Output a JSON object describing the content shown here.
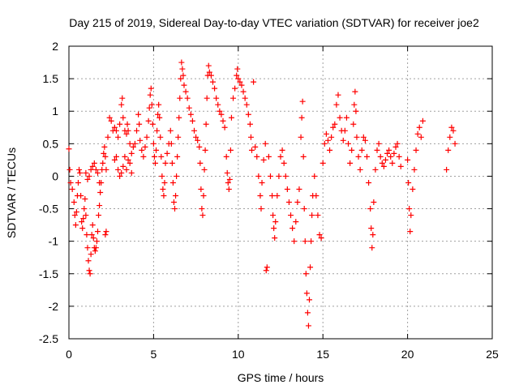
{
  "chart_data": {
    "type": "scatter",
    "title": "Day 215 of 2019, Sidereal Day-to-day VTEC variation (SDTVAR) for receiver joe2",
    "xlabel": "GPS time / hours",
    "ylabel": "SDTVAR / TECUs",
    "xlim": [
      0,
      25
    ],
    "ylim": [
      -2.5,
      2
    ],
    "xticks": [
      "0",
      "5",
      "10",
      "15",
      "20",
      "25"
    ],
    "yticks": [
      "2",
      "1.5",
      "1",
      "0.5",
      "0",
      "-0.5",
      "-1",
      "-1.5",
      "-2",
      "-2.5"
    ],
    "grid": true,
    "marker": "+",
    "marker_color": "#ff0000",
    "series": [
      {
        "name": "SDTVAR",
        "points": [
          [
            0.0,
            0.42
          ],
          [
            0.05,
            0.1
          ],
          [
            0.1,
            -0.1
          ],
          [
            0.2,
            -0.2
          ],
          [
            0.3,
            -0.4
          ],
          [
            0.35,
            -0.6
          ],
          [
            0.4,
            -0.75
          ],
          [
            0.45,
            -0.55
          ],
          [
            0.5,
            -0.3
          ],
          [
            0.55,
            -0.1
          ],
          [
            0.6,
            0.1
          ],
          [
            0.65,
            0.05
          ],
          [
            0.7,
            -0.3
          ],
          [
            0.75,
            -0.7
          ],
          [
            0.8,
            -0.8
          ],
          [
            0.85,
            -0.65
          ],
          [
            0.9,
            -0.5
          ],
          [
            0.95,
            -0.35
          ],
          [
            1.0,
            -0.6
          ],
          [
            1.05,
            -0.9
          ],
          [
            1.1,
            -1.1
          ],
          [
            1.15,
            -1.3
          ],
          [
            1.2,
            -1.45
          ],
          [
            1.25,
            -1.5
          ],
          [
            1.3,
            -1.2
          ],
          [
            1.35,
            -0.9
          ],
          [
            1.4,
            -0.75
          ],
          [
            1.45,
            -0.95
          ],
          [
            1.5,
            -1.1
          ],
          [
            1.55,
            -1.15
          ],
          [
            1.6,
            -1.1
          ],
          [
            1.65,
            -1.0
          ],
          [
            1.7,
            -0.85
          ],
          [
            1.75,
            -0.6
          ],
          [
            1.8,
            -0.45
          ],
          [
            1.85,
            -0.25
          ],
          [
            1.9,
            -0.1
          ],
          [
            1.95,
            0.1
          ],
          [
            2.0,
            0.2
          ],
          [
            2.05,
            0.35
          ],
          [
            2.1,
            0.45
          ],
          [
            2.15,
            0.3
          ],
          [
            2.2,
            0.1
          ],
          [
            2.2,
            -0.85
          ],
          [
            2.15,
            -0.9
          ],
          [
            1.0,
            0.05
          ],
          [
            1.1,
            -0.05
          ],
          [
            1.2,
            0.0
          ],
          [
            1.3,
            0.1
          ],
          [
            1.4,
            0.15
          ],
          [
            1.5,
            0.2
          ],
          [
            1.6,
            0.1
          ],
          [
            1.7,
            0.05
          ],
          [
            1.8,
            -0.1
          ],
          [
            2.3,
            0.6
          ],
          [
            2.4,
            0.9
          ],
          [
            2.5,
            0.85
          ],
          [
            2.6,
            0.7
          ],
          [
            2.7,
            0.75
          ],
          [
            2.8,
            0.7
          ],
          [
            2.9,
            0.6
          ],
          [
            3.0,
            0.8
          ],
          [
            3.1,
            1.1
          ],
          [
            3.15,
            1.2
          ],
          [
            3.2,
            0.9
          ],
          [
            3.3,
            0.7
          ],
          [
            3.4,
            0.65
          ],
          [
            3.45,
            0.8
          ],
          [
            3.5,
            0.7
          ],
          [
            3.6,
            0.5
          ],
          [
            3.7,
            0.35
          ],
          [
            3.8,
            0.45
          ],
          [
            2.7,
            0.25
          ],
          [
            2.8,
            0.3
          ],
          [
            2.9,
            0.1
          ],
          [
            3.0,
            0.0
          ],
          [
            3.1,
            0.05
          ],
          [
            3.2,
            0.15
          ],
          [
            3.3,
            0.3
          ],
          [
            3.4,
            0.1
          ],
          [
            3.5,
            0.25
          ],
          [
            3.6,
            0.2
          ],
          [
            3.7,
            0.05
          ],
          [
            3.9,
            0.5
          ],
          [
            4.0,
            0.7
          ],
          [
            4.1,
            0.95
          ],
          [
            4.15,
            0.8
          ],
          [
            4.2,
            0.55
          ],
          [
            4.3,
            0.4
          ],
          [
            4.4,
            0.3
          ],
          [
            4.5,
            0.45
          ],
          [
            4.6,
            0.6
          ],
          [
            4.7,
            0.85
          ],
          [
            4.75,
            1.05
          ],
          [
            4.8,
            1.25
          ],
          [
            4.85,
            1.35
          ],
          [
            4.9,
            1.1
          ],
          [
            4.95,
            0.8
          ],
          [
            5.0,
            0.5
          ],
          [
            5.05,
            0.3
          ],
          [
            5.1,
            0.2
          ],
          [
            5.15,
            0.4
          ],
          [
            5.2,
            0.7
          ],
          [
            5.25,
            0.95
          ],
          [
            5.3,
            1.1
          ],
          [
            5.35,
            0.9
          ],
          [
            5.4,
            0.6
          ],
          [
            5.45,
            0.3
          ],
          [
            5.5,
            0.0
          ],
          [
            5.55,
            -0.2
          ],
          [
            5.6,
            -0.3
          ],
          [
            5.65,
            -0.1
          ],
          [
            5.7,
            0.2
          ],
          [
            5.8,
            0.35
          ],
          [
            5.9,
            0.5
          ],
          [
            6.0,
            0.7
          ],
          [
            6.05,
            0.5
          ],
          [
            6.1,
            0.2
          ],
          [
            6.15,
            -0.1
          ],
          [
            6.2,
            -0.4
          ],
          [
            6.25,
            -0.5
          ],
          [
            6.3,
            -0.3
          ],
          [
            6.35,
            0.0
          ],
          [
            6.4,
            0.3
          ],
          [
            6.45,
            0.6
          ],
          [
            6.5,
            0.9
          ],
          [
            6.55,
            1.2
          ],
          [
            6.6,
            1.5
          ],
          [
            6.65,
            1.75
          ],
          [
            6.7,
            1.65
          ],
          [
            6.75,
            1.55
          ],
          [
            6.8,
            1.4
          ],
          [
            6.9,
            1.3
          ],
          [
            7.0,
            1.2
          ],
          [
            7.1,
            1.05
          ],
          [
            7.2,
            0.95
          ],
          [
            7.3,
            0.85
          ],
          [
            7.4,
            0.7
          ],
          [
            7.5,
            0.6
          ],
          [
            7.6,
            0.55
          ],
          [
            7.7,
            0.45
          ],
          [
            7.75,
            0.2
          ],
          [
            7.8,
            -0.2
          ],
          [
            7.85,
            -0.5
          ],
          [
            7.9,
            -0.6
          ],
          [
            7.95,
            -0.3
          ],
          [
            8.0,
            0.1
          ],
          [
            8.05,
            0.4
          ],
          [
            8.1,
            0.8
          ],
          [
            8.15,
            1.2
          ],
          [
            8.2,
            1.55
          ],
          [
            8.25,
            1.7
          ],
          [
            8.3,
            1.6
          ],
          [
            8.4,
            1.55
          ],
          [
            8.5,
            1.45
          ],
          [
            8.6,
            1.35
          ],
          [
            8.7,
            1.2
          ],
          [
            8.8,
            1.1
          ],
          [
            8.9,
            1.0
          ],
          [
            9.0,
            0.95
          ],
          [
            9.1,
            0.85
          ],
          [
            9.2,
            0.75
          ],
          [
            9.3,
            0.3
          ],
          [
            9.35,
            0.05
          ],
          [
            9.4,
            -0.1
          ],
          [
            9.45,
            -0.2
          ],
          [
            9.5,
            -0.05
          ],
          [
            9.55,
            0.4
          ],
          [
            9.6,
            0.9
          ],
          [
            9.7,
            1.2
          ],
          [
            9.8,
            1.35
          ],
          [
            9.9,
            1.55
          ],
          [
            9.95,
            1.65
          ],
          [
            10.0,
            1.5
          ],
          [
            10.1,
            1.45
          ],
          [
            10.2,
            1.4
          ],
          [
            10.3,
            1.3
          ],
          [
            10.4,
            1.2
          ],
          [
            10.5,
            1.1
          ],
          [
            10.6,
            0.95
          ],
          [
            10.7,
            0.8
          ],
          [
            10.75,
            0.6
          ],
          [
            10.8,
            0.4
          ],
          [
            10.9,
            1.45
          ],
          [
            11.0,
            0.45
          ],
          [
            11.1,
            0.3
          ],
          [
            11.2,
            0.0
          ],
          [
            11.3,
            -0.3
          ],
          [
            11.35,
            -0.5
          ],
          [
            11.4,
            -0.1
          ],
          [
            11.5,
            0.25
          ],
          [
            11.6,
            0.5
          ],
          [
            11.65,
            -1.45
          ],
          [
            11.7,
            -1.4
          ],
          [
            11.8,
            0.3
          ],
          [
            11.9,
            0.0
          ],
          [
            12.0,
            -0.3
          ],
          [
            12.05,
            -0.6
          ],
          [
            12.1,
            -0.8
          ],
          [
            12.15,
            -0.95
          ],
          [
            12.2,
            -0.7
          ],
          [
            12.3,
            -0.3
          ],
          [
            12.4,
            0.0
          ],
          [
            12.5,
            0.3
          ],
          [
            12.6,
            0.4
          ],
          [
            12.7,
            0.2
          ],
          [
            12.8,
            0.0
          ],
          [
            12.9,
            -0.2
          ],
          [
            13.0,
            -0.4
          ],
          [
            13.1,
            -0.6
          ],
          [
            13.2,
            -0.8
          ],
          [
            13.3,
            -1.0
          ],
          [
            13.4,
            -0.7
          ],
          [
            13.5,
            -0.4
          ],
          [
            13.6,
            -0.2
          ],
          [
            13.7,
            0.6
          ],
          [
            13.75,
            0.9
          ],
          [
            13.8,
            1.15
          ],
          [
            13.85,
            0.3
          ],
          [
            13.9,
            -0.5
          ],
          [
            13.95,
            -1.0
          ],
          [
            14.0,
            -1.5
          ],
          [
            14.05,
            -1.8
          ],
          [
            14.1,
            -2.1
          ],
          [
            14.15,
            -2.3
          ],
          [
            14.2,
            -1.9
          ],
          [
            14.25,
            -1.4
          ],
          [
            14.3,
            -1.0
          ],
          [
            14.35,
            -0.6
          ],
          [
            14.4,
            -0.3
          ],
          [
            14.5,
            0.0
          ],
          [
            14.6,
            -0.3
          ],
          [
            14.7,
            -0.6
          ],
          [
            14.8,
            -0.9
          ],
          [
            14.9,
            -0.95
          ],
          [
            15.0,
            0.2
          ],
          [
            15.1,
            0.5
          ],
          [
            15.2,
            0.65
          ],
          [
            15.3,
            0.55
          ],
          [
            15.4,
            0.4
          ],
          [
            15.5,
            0.6
          ],
          [
            15.6,
            0.75
          ],
          [
            15.7,
            0.8
          ],
          [
            15.8,
            1.1
          ],
          [
            15.9,
            1.25
          ],
          [
            16.0,
            0.9
          ],
          [
            16.1,
            0.7
          ],
          [
            16.2,
            0.55
          ],
          [
            16.3,
            0.7
          ],
          [
            16.4,
            0.9
          ],
          [
            16.5,
            0.5
          ],
          [
            16.6,
            0.2
          ],
          [
            16.7,
            0.4
          ],
          [
            16.8,
            0.8
          ],
          [
            16.85,
            1.1
          ],
          [
            16.9,
            1.3
          ],
          [
            16.95,
            1.0
          ],
          [
            17.0,
            0.6
          ],
          [
            17.1,
            0.3
          ],
          [
            17.2,
            0.1
          ],
          [
            17.3,
            0.4
          ],
          [
            17.4,
            0.6
          ],
          [
            17.5,
            0.55
          ],
          [
            17.6,
            0.3
          ],
          [
            17.7,
            -0.1
          ],
          [
            17.8,
            -0.5
          ],
          [
            17.85,
            -0.8
          ],
          [
            17.9,
            -1.1
          ],
          [
            17.95,
            -0.9
          ],
          [
            18.0,
            -0.4
          ],
          [
            18.1,
            0.1
          ],
          [
            18.2,
            0.4
          ],
          [
            18.3,
            0.5
          ],
          [
            18.4,
            0.3
          ],
          [
            18.5,
            0.2
          ],
          [
            18.6,
            0.15
          ],
          [
            18.7,
            0.25
          ],
          [
            18.8,
            0.35
          ],
          [
            18.9,
            0.4
          ],
          [
            19.0,
            0.3
          ],
          [
            19.1,
            0.2
          ],
          [
            19.2,
            0.35
          ],
          [
            19.3,
            0.45
          ],
          [
            19.4,
            0.5
          ],
          [
            19.5,
            0.3
          ],
          [
            19.6,
            0.15
          ],
          [
            20.0,
            0.25
          ],
          [
            20.05,
            -0.1
          ],
          [
            20.1,
            -0.5
          ],
          [
            20.15,
            -0.85
          ],
          [
            20.2,
            -0.6
          ],
          [
            20.3,
            -0.2
          ],
          [
            20.4,
            0.1
          ],
          [
            20.5,
            0.4
          ],
          [
            20.6,
            0.65
          ],
          [
            20.7,
            0.75
          ],
          [
            20.8,
            0.6
          ],
          [
            20.9,
            0.85
          ],
          [
            22.3,
            0.1
          ],
          [
            22.4,
            0.4
          ],
          [
            22.5,
            0.6
          ],
          [
            22.6,
            0.75
          ],
          [
            22.7,
            0.7
          ],
          [
            22.8,
            0.5
          ]
        ]
      }
    ]
  }
}
